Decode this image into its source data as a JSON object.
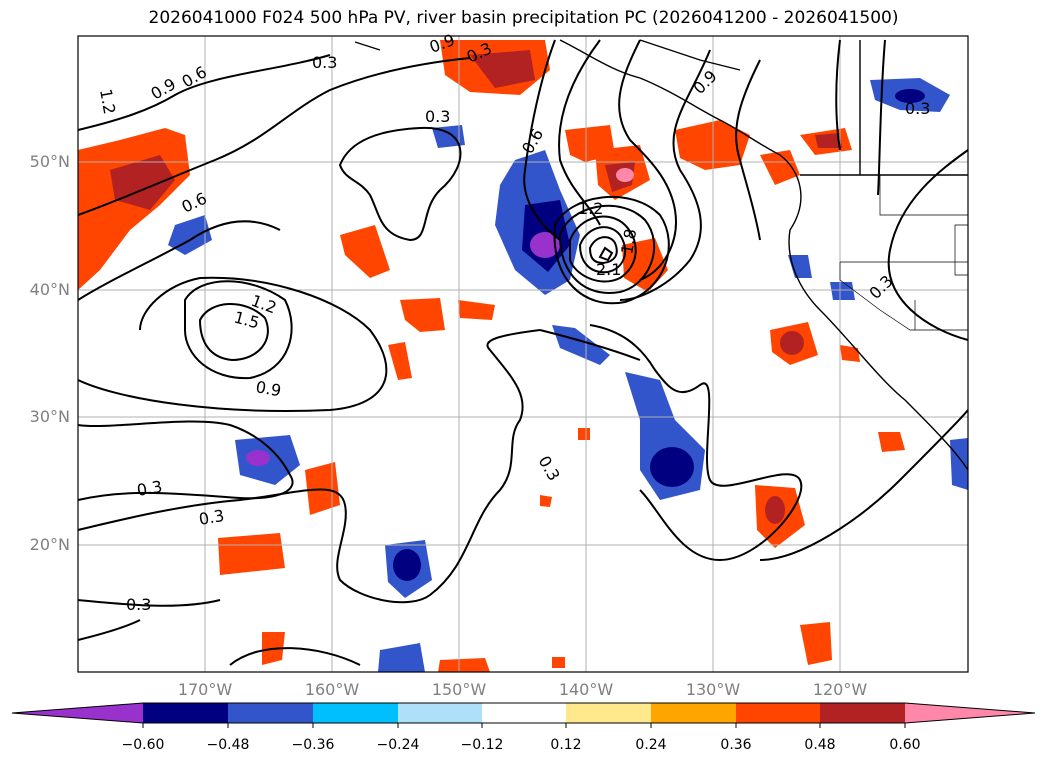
{
  "title": "2026041000 F024 500 hPa PV, river basin precipitation PC (2026041200 - 2026041500)",
  "lat_labels": [
    "50°N",
    "40°N",
    "30°N",
    "20°N"
  ],
  "lon_labels": [
    "170°W",
    "160°W",
    "150°W",
    "140°W",
    "130°W",
    "120°W"
  ],
  "contour_labels": [
    "1.2",
    "0.9",
    "0.6",
    "0.3",
    "0.9",
    "0.3",
    "0.9",
    "0.3",
    "0.6",
    "1.2",
    "1.5",
    "0.9",
    "0.6",
    "1.2",
    "2.1",
    "1.8",
    "0.3",
    "0.3",
    "0.3",
    "0.3",
    "0.3",
    "0.3"
  ],
  "colorbar": {
    "ticks": [
      "−0.60",
      "−0.48",
      "−0.36",
      "−0.24",
      "−0.12",
      "0.12",
      "0.24",
      "0.36",
      "0.48",
      "0.60"
    ],
    "colors": [
      "#9932cc",
      "#000080",
      "#3355cc",
      "#00bfff",
      "#aee0fa",
      "#ffffff",
      "#ffe98c",
      "#ffa500",
      "#ff4500",
      "#b22222",
      "#ff88aa"
    ]
  },
  "colors": {
    "grid": "#b0b0b0",
    "contour": "#000000",
    "coast": "#000000",
    "tick_text": "#808080"
  }
}
